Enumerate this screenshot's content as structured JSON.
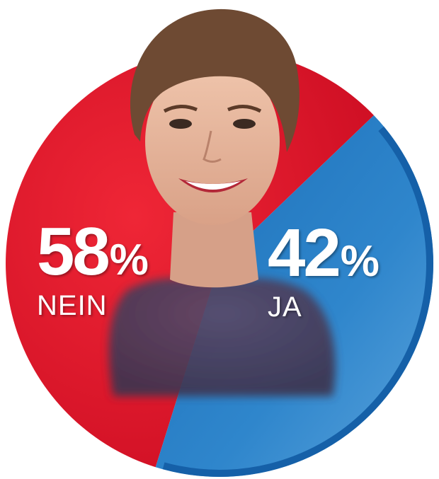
{
  "chart_data": {
    "type": "pie",
    "slices": [
      {
        "label": "NEIN",
        "value": 58,
        "display": "58",
        "color": "#e2142d"
      },
      {
        "label": "JA",
        "value": 42,
        "display": "42",
        "color": "#1a74bf"
      }
    ],
    "unit": "%",
    "title": "",
    "legend": "none"
  }
}
